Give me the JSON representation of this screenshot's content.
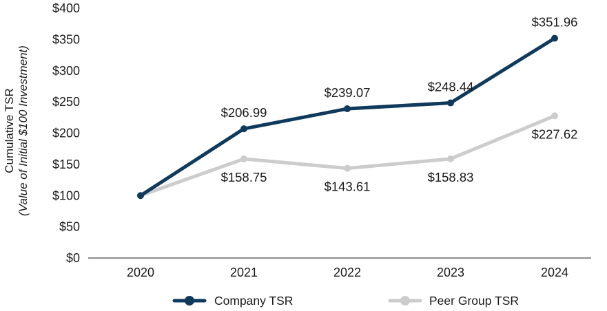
{
  "chart_data": {
    "type": "line",
    "title": "",
    "ylabel": "Cumulative TSR",
    "ylabel_sub": "(Value of Initial $100 Investment)",
    "xlabel": "",
    "categories": [
      "2020",
      "2021",
      "2022",
      "2023",
      "2024"
    ],
    "ylim": [
      0,
      400
    ],
    "yticks": [
      0,
      50,
      100,
      150,
      200,
      250,
      300,
      350,
      400
    ],
    "ytick_labels": [
      "$0",
      "$50",
      "$100",
      "$150",
      "$200",
      "$250",
      "$300",
      "$350",
      "$400"
    ],
    "grid": false,
    "legend_position": "bottom-center",
    "series": [
      {
        "name": "Company TSR",
        "color": "#0f3a5c",
        "values": [
          100,
          206.99,
          239.07,
          248.44,
          351.96
        ],
        "labels": [
          "",
          "$206.99",
          "$239.07",
          "$248.44",
          "$351.96"
        ]
      },
      {
        "name": "Peer Group TSR",
        "color": "#cccccc",
        "values": [
          100,
          158.75,
          143.61,
          158.83,
          227.62
        ],
        "labels": [
          "",
          "$158.75",
          "$143.61",
          "$158.83",
          "$227.62"
        ]
      }
    ]
  }
}
